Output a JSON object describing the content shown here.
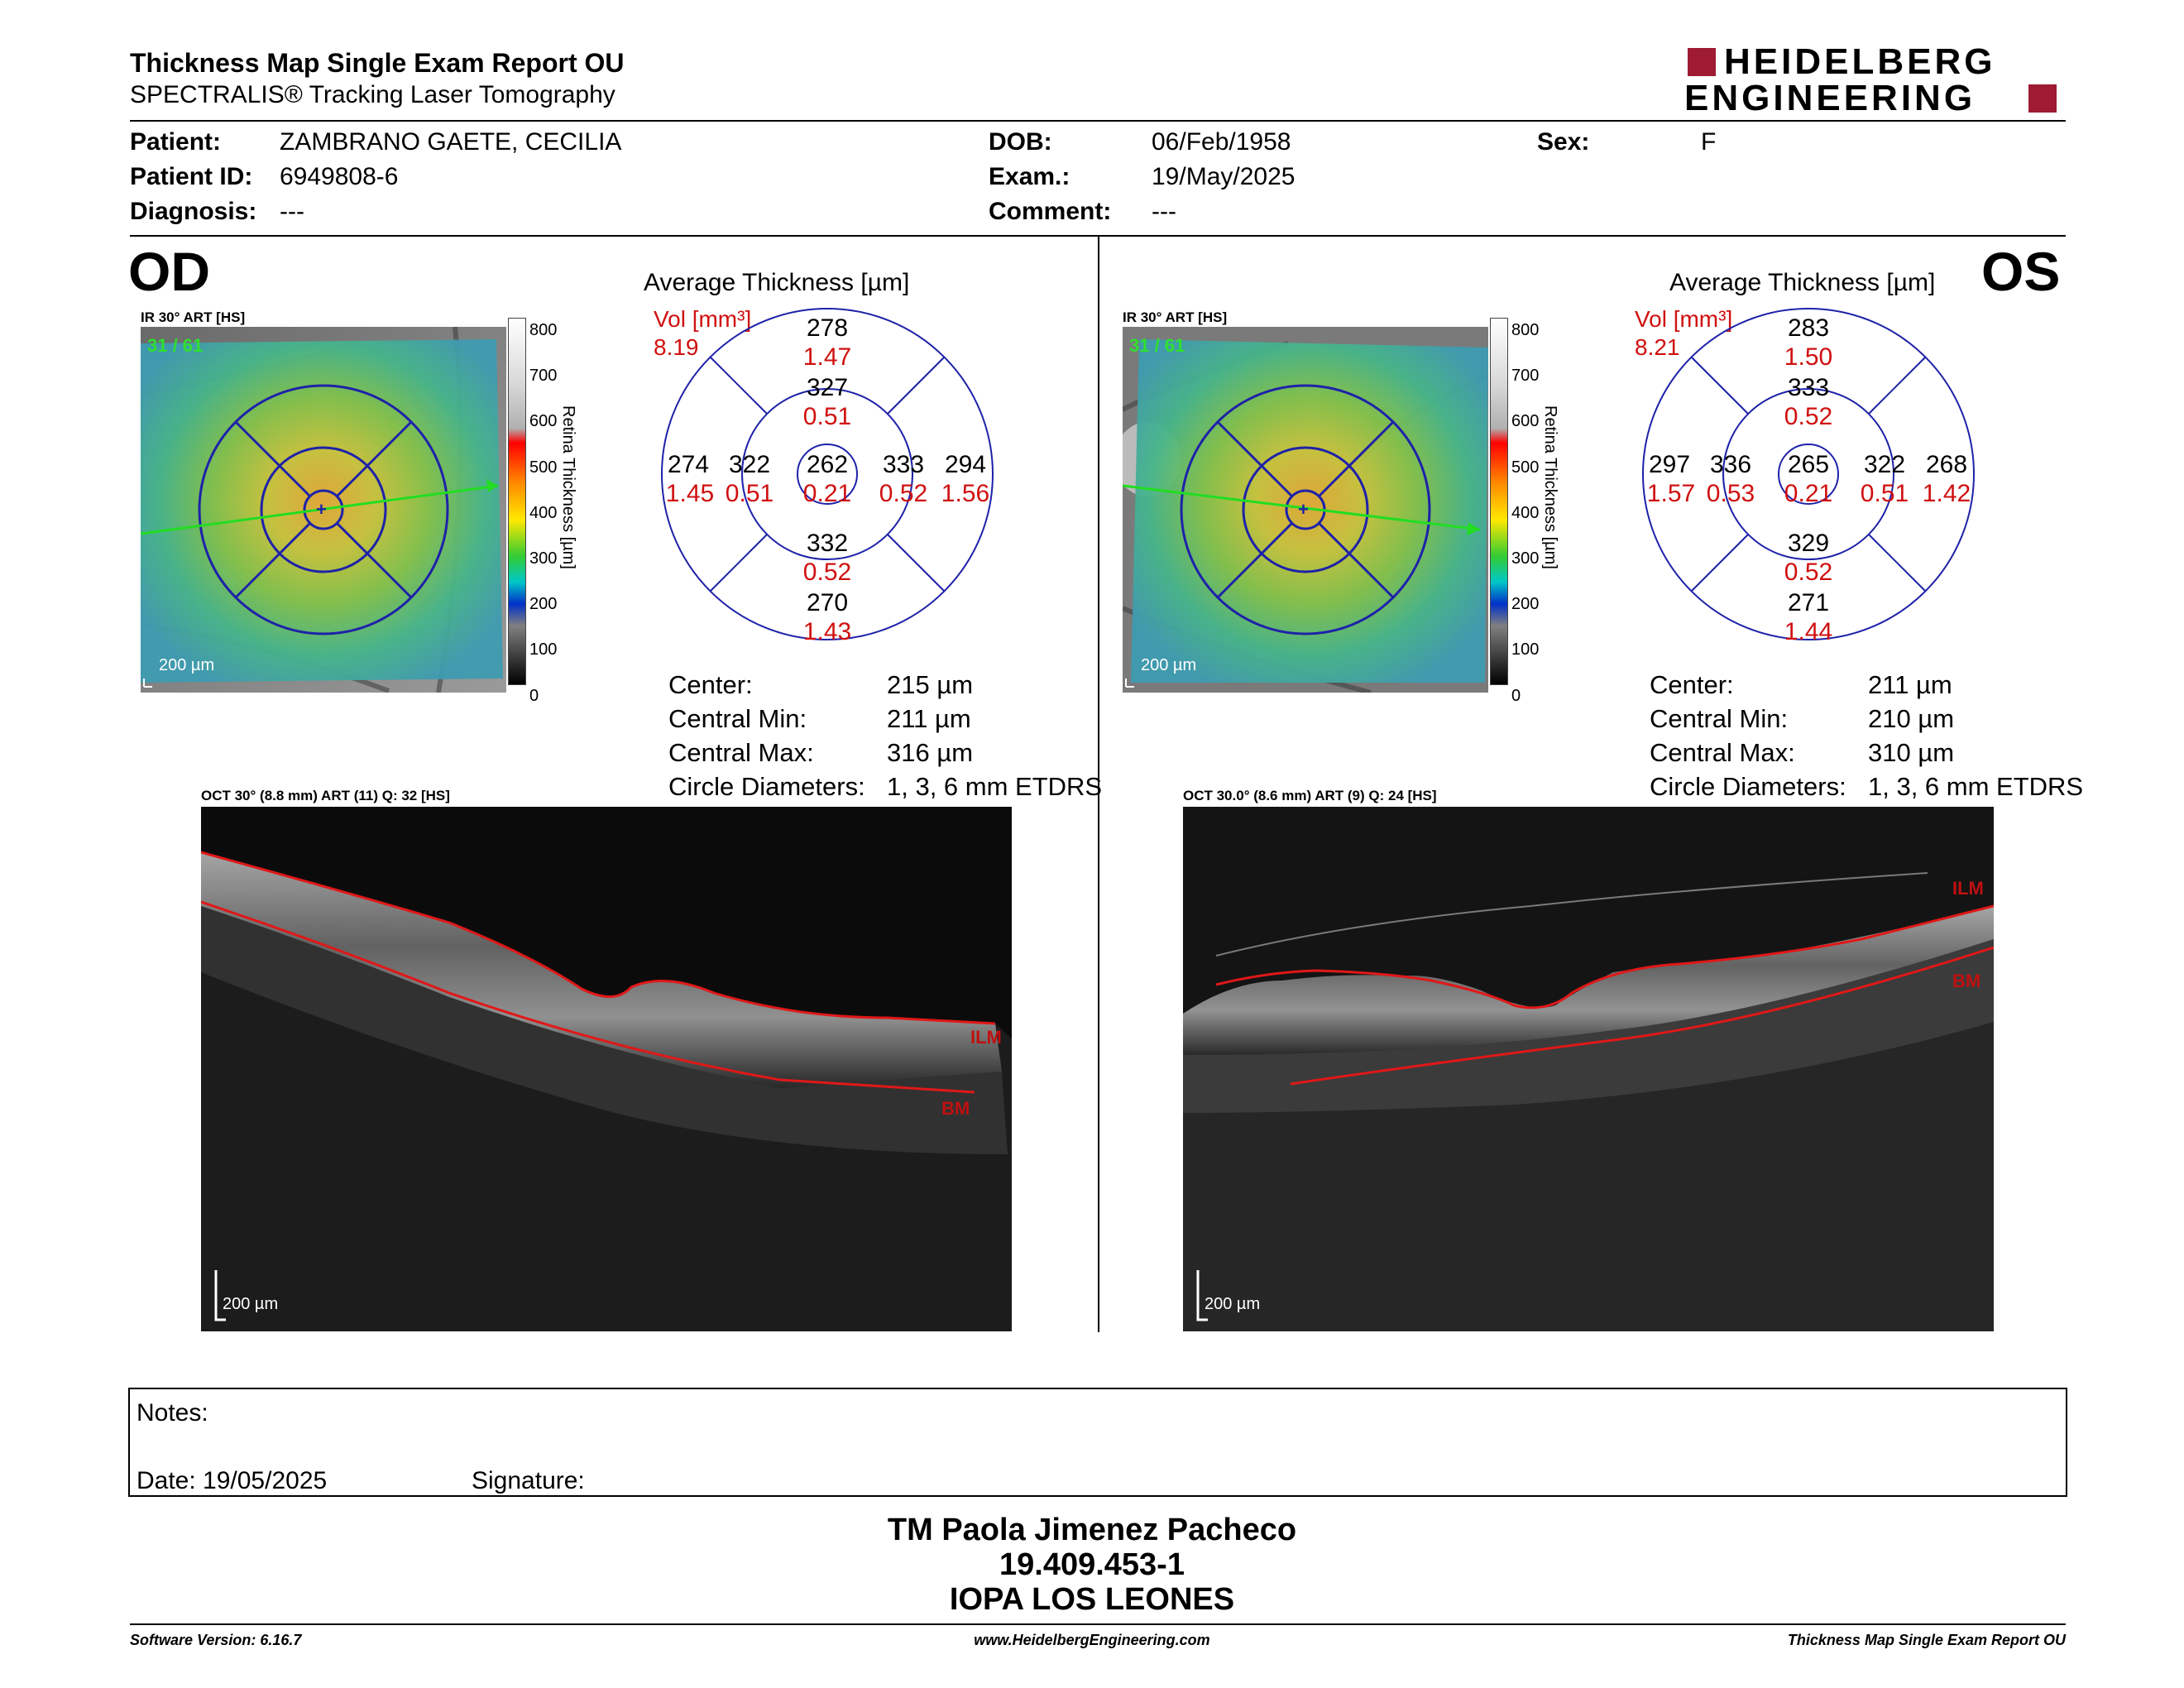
{
  "header": {
    "title": "Thickness Map Single Exam Report OU",
    "subtitle": "SPECTRALIS® Tracking Laser Tomography",
    "logo_line1": "HEIDELBERG",
    "logo_line2": "ENGINEERING",
    "brand_color": "#9e1b32"
  },
  "patient": {
    "patient_label": "Patient:",
    "patient_value": "ZAMBRANO GAETE, CECILIA",
    "id_label": "Patient ID:",
    "id_value": "6949808-6",
    "diagnosis_label": "Diagnosis:",
    "diagnosis_value": "---",
    "dob_label": "DOB:",
    "dob_value": "06/Feb/1958",
    "exam_label": "Exam.:",
    "exam_value": "19/May/2025",
    "comment_label": "Comment:",
    "comment_value": "---",
    "sex_label": "Sex:",
    "sex_value": "F"
  },
  "scale_bar": {
    "ticks": [
      "800",
      "700",
      "600",
      "500",
      "400",
      "300",
      "200",
      "100",
      "0"
    ],
    "axis_label": "Retina Thickness [µm]"
  },
  "od": {
    "eye": "OD",
    "ir_label": "IR 30° ART [HS]",
    "ir_overlay": "31 / 61",
    "ir_scale": "200 µm",
    "avg_title": "Average Thickness [µm]",
    "vol_label": "Vol [mm³]",
    "vol_value": "8.19",
    "sectors": {
      "center": {
        "thk": "262",
        "vol": "0.21"
      },
      "inner_sup": {
        "thk": "327",
        "vol": "0.51"
      },
      "inner_inf": {
        "thk": "332",
        "vol": "0.52"
      },
      "inner_left": {
        "thk": "322",
        "vol": "0.51"
      },
      "inner_right": {
        "thk": "333",
        "vol": "0.52"
      },
      "outer_sup": {
        "thk": "278",
        "vol": "1.47"
      },
      "outer_inf": {
        "thk": "270",
        "vol": "1.43"
      },
      "outer_left": {
        "thk": "274",
        "vol": "1.45"
      },
      "outer_right": {
        "thk": "294",
        "vol": "1.56"
      }
    },
    "stats": {
      "center_label": "Center:",
      "center_value": "215 µm",
      "min_label": "Central Min:",
      "min_value": "211 µm",
      "max_label": "Central Max:",
      "max_value": "316 µm",
      "diam_label": "Circle Diameters:",
      "diam_value": "1, 3, 6 mm ETDRS"
    },
    "oct_label": "OCT 30° (8.8 mm) ART (11) Q: 32 [HS]",
    "ilm": "ILM",
    "bm": "BM",
    "oct_scale": "200 µm"
  },
  "os": {
    "eye": "OS",
    "ir_label": "IR 30° ART [HS]",
    "ir_overlay": "31 / 61",
    "ir_scale": "200 µm",
    "avg_title": "Average Thickness [µm]",
    "vol_label": "Vol [mm³]",
    "vol_value": "8.21",
    "sectors": {
      "center": {
        "thk": "265",
        "vol": "0.21"
      },
      "inner_sup": {
        "thk": "333",
        "vol": "0.52"
      },
      "inner_inf": {
        "thk": "329",
        "vol": "0.52"
      },
      "inner_left": {
        "thk": "336",
        "vol": "0.53"
      },
      "inner_right": {
        "thk": "322",
        "vol": "0.51"
      },
      "outer_sup": {
        "thk": "283",
        "vol": "1.50"
      },
      "outer_inf": {
        "thk": "271",
        "vol": "1.44"
      },
      "outer_left": {
        "thk": "297",
        "vol": "1.57"
      },
      "outer_right": {
        "thk": "268",
        "vol": "1.42"
      }
    },
    "stats": {
      "center_label": "Center:",
      "center_value": "211 µm",
      "min_label": "Central Min:",
      "min_value": "210 µm",
      "max_label": "Central Max:",
      "max_value": "310 µm",
      "diam_label": "Circle Diameters:",
      "diam_value": "1, 3, 6 mm ETDRS"
    },
    "oct_label": "OCT 30.0° (8.6 mm) ART (9) Q: 24 [HS]",
    "ilm": "ILM",
    "bm": "BM",
    "oct_scale": "200 µm"
  },
  "notes": {
    "notes_label": "Notes:",
    "date_label": "Date: 19/05/2025",
    "signature_label": "Signature:"
  },
  "signature": {
    "name": "TM Paola Jimenez Pacheco",
    "id": "19.409.453-1",
    "institution": "IOPA LOS LEONES"
  },
  "footer": {
    "software": "Software Version: 6.16.7",
    "website": "www.HeidelbergEngineering.com",
    "report": "Thickness Map Single Exam Report OU"
  }
}
